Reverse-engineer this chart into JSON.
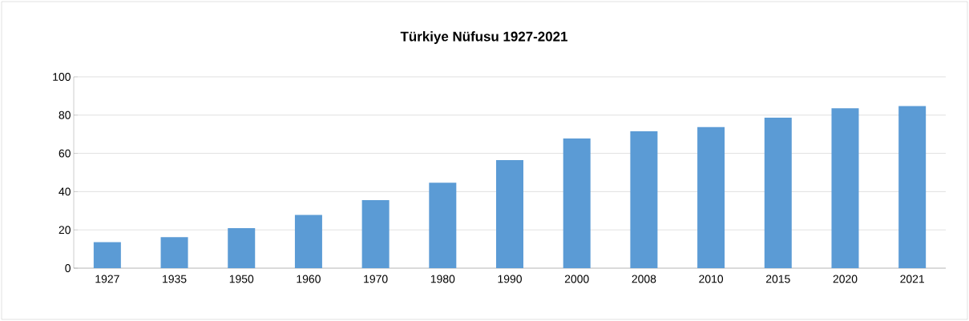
{
  "chart_data": {
    "type": "bar",
    "title": "Türkiye Nüfusu 1927-2021",
    "categories": [
      "1927",
      "1935",
      "1950",
      "1960",
      "1970",
      "1980",
      "1990",
      "2000",
      "2008",
      "2010",
      "2015",
      "2020",
      "2021"
    ],
    "values": [
      13.6,
      16.2,
      20.9,
      27.8,
      35.6,
      44.7,
      56.5,
      67.8,
      71.5,
      73.7,
      78.7,
      83.6,
      84.7
    ],
    "color": "#5b9bd5",
    "ylim": [
      0,
      100
    ],
    "yticks": [
      0,
      20,
      40,
      60,
      80,
      100
    ],
    "grid": "y"
  }
}
